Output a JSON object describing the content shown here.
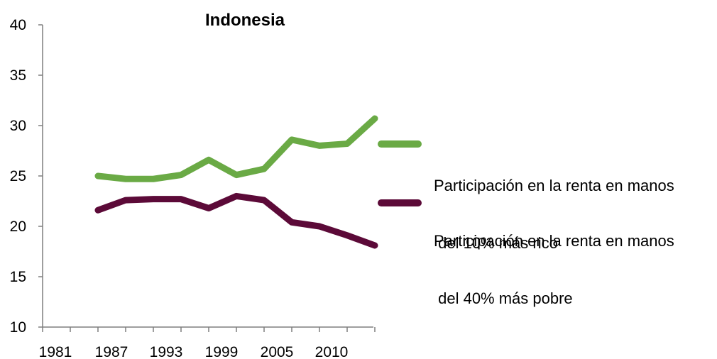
{
  "chart_data": {
    "type": "line",
    "title": "Indonesia",
    "xlabel": "",
    "ylabel": "",
    "x_tick_labels": [
      "1981",
      "1987",
      "1993",
      "1999",
      "2005",
      "2010"
    ],
    "y_tick_labels": [
      "10",
      "15",
      "20",
      "25",
      "30",
      "35",
      "40"
    ],
    "xlim": [
      1981,
      2012
    ],
    "ylim": [
      10,
      40
    ],
    "grid": false,
    "legend_position": "right",
    "x": [
      1984,
      1987,
      1990,
      1993,
      1996,
      1999,
      2002,
      2005,
      2008,
      2011,
      2014
    ],
    "series": [
      {
        "name_line1": "Participación en la renta en manos",
        "name_line2": " del 10% más rico",
        "color": "#6aaa45",
        "values": [
          25.0,
          24.7,
          24.7,
          25.1,
          26.6,
          25.1,
          25.7,
          28.6,
          28.0,
          28.2,
          30.7
        ]
      },
      {
        "name_line1": "Participación en la renta en manos",
        "name_line2": " del 40% más pobre",
        "color": "#5c0a38",
        "values": [
          21.6,
          22.6,
          22.7,
          22.7,
          21.8,
          23.0,
          22.6,
          20.4,
          20.0,
          19.1,
          18.1
        ]
      }
    ]
  }
}
